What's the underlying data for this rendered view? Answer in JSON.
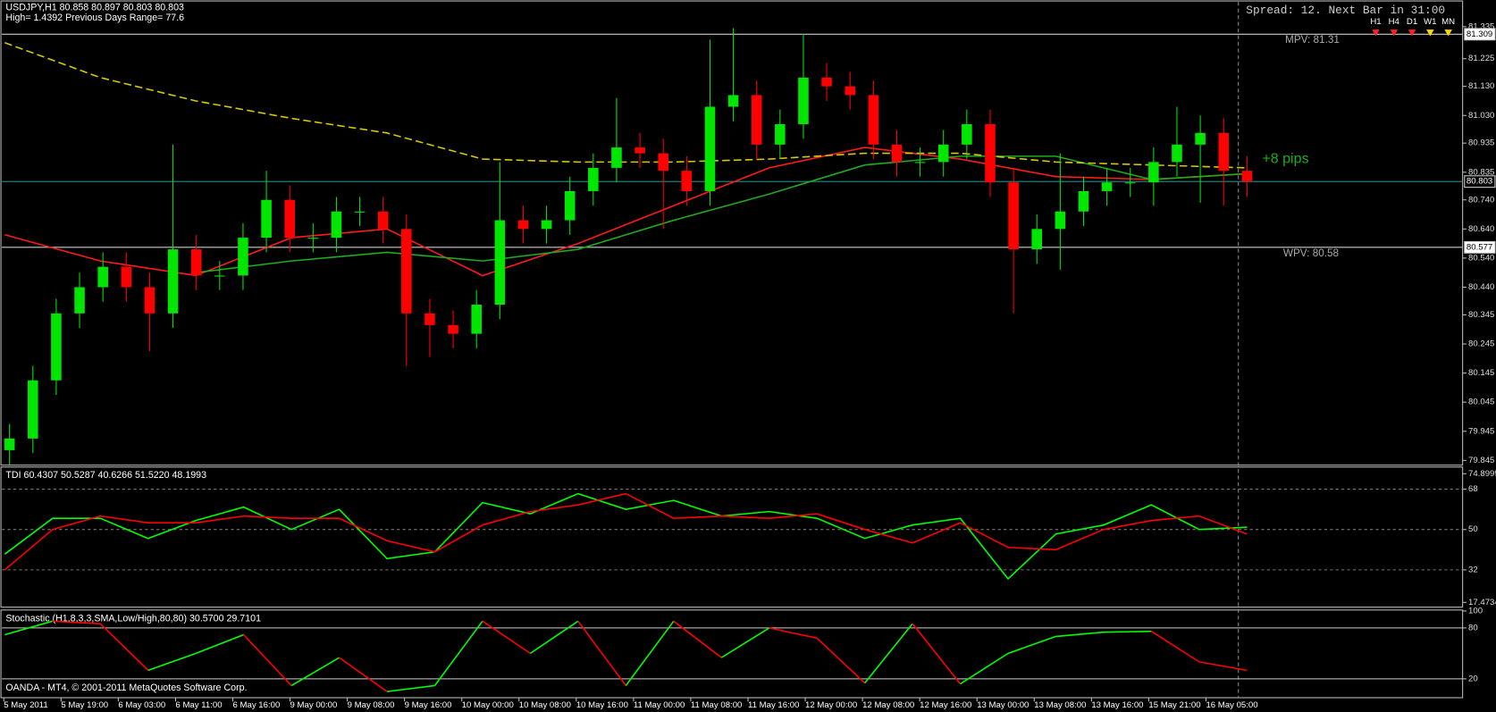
{
  "x_axis_labels": [
    "5 May 2011",
    "5 May 19:00",
    "6 May 03:00",
    "6 May 11:00",
    "6 May 16:00",
    "9 May 00:00",
    "9 May 08:00",
    "9 May 16:00",
    "10 May 00:00",
    "10 May 08:00",
    "10 May 16:00",
    "11 May 00:00",
    "11 May 08:00",
    "11 May 16:00",
    "12 May 00:00",
    "12 May 08:00",
    "12 May 16:00",
    "13 May 00:00",
    "13 May 08:00",
    "13 May 16:00",
    "15 May 21:00",
    "16 May 05:00"
  ],
  "chart_data": [
    {
      "type": "candlestick",
      "title": "USDJPY,H1  80.858 80.897 80.803 80.803",
      "subtitle": "High= 1.4392   Previous Days Range= 77.6",
      "spread": "Spread: 12. Next Bar in 31:00",
      "timeframes": [
        "H1",
        "H4",
        "D1",
        "W1",
        "MN"
      ],
      "annotations": [
        "MPV: 81.31",
        "WPV: 80.58",
        "+8 pips"
      ],
      "up_color": "#00e600",
      "down_color": "#ff0000",
      "open": [
        79.88,
        79.92,
        80.12,
        80.35,
        80.44,
        80.51,
        80.44,
        80.35,
        80.57,
        80.48,
        80.48,
        80.61,
        80.74,
        80.61,
        80.61,
        80.7,
        80.7,
        80.64,
        80.35,
        80.31,
        80.28,
        80.38,
        80.67,
        80.64,
        80.67,
        80.77,
        80.85,
        80.92,
        80.9,
        80.84,
        80.77,
        81.06,
        81.1,
        80.93,
        81.0,
        81.16,
        81.13,
        81.1,
        80.93,
        80.87,
        80.87,
        80.93,
        81.0,
        80.8,
        80.57,
        80.64,
        80.7,
        80.77,
        80.8,
        80.8,
        80.87,
        80.93,
        80.97,
        80.84
      ],
      "high": [
        79.97,
        80.17,
        80.4,
        80.49,
        80.56,
        80.56,
        80.49,
        80.93,
        80.62,
        80.53,
        80.66,
        80.84,
        80.79,
        80.66,
        80.75,
        80.75,
        80.75,
        80.69,
        80.4,
        80.36,
        80.43,
        80.87,
        80.72,
        80.72,
        80.82,
        80.9,
        81.09,
        80.97,
        80.95,
        80.89,
        81.29,
        81.33,
        81.15,
        81.05,
        81.31,
        81.21,
        81.18,
        81.15,
        80.98,
        80.92,
        80.98,
        81.05,
        81.05,
        80.85,
        80.69,
        80.9,
        80.82,
        80.85,
        80.85,
        80.92,
        81.06,
        81.03,
        81.02,
        80.89
      ],
      "low": [
        79.83,
        79.87,
        80.07,
        80.3,
        80.39,
        80.39,
        80.22,
        80.3,
        80.43,
        80.43,
        80.43,
        80.56,
        80.56,
        80.56,
        80.56,
        80.65,
        80.59,
        80.17,
        80.2,
        80.23,
        80.23,
        80.33,
        80.59,
        80.59,
        80.62,
        80.72,
        80.8,
        80.85,
        80.64,
        80.72,
        80.72,
        81.01,
        80.88,
        80.88,
        80.95,
        81.08,
        81.05,
        80.88,
        80.82,
        80.82,
        80.82,
        80.88,
        80.75,
        80.35,
        80.52,
        80.5,
        80.65,
        80.72,
        80.75,
        80.72,
        80.82,
        80.73,
        80.72,
        80.75
      ],
      "close": [
        79.92,
        80.12,
        80.35,
        80.44,
        80.51,
        80.44,
        80.35,
        80.57,
        80.48,
        80.48,
        80.61,
        80.74,
        80.61,
        80.61,
        80.7,
        80.7,
        80.64,
        80.35,
        80.31,
        80.28,
        80.38,
        80.67,
        80.64,
        80.67,
        80.77,
        80.85,
        80.92,
        80.9,
        80.84,
        80.77,
        81.06,
        81.1,
        80.93,
        81.0,
        81.16,
        81.13,
        81.1,
        80.93,
        80.87,
        80.87,
        80.93,
        81.0,
        80.8,
        80.57,
        80.64,
        80.7,
        80.77,
        80.8,
        80.8,
        80.87,
        80.93,
        80.97,
        80.84,
        80.803
      ],
      "series": [
        {
          "color": "#ff1a1a",
          "values": [
            80.62,
            80.53,
            80.48,
            80.61,
            80.64,
            80.48,
            80.59,
            80.72,
            80.85,
            80.92,
            80.88,
            80.82,
            80.81,
            80.83
          ]
        },
        {
          "color": "#1faa1f",
          "values": [
            null,
            null,
            80.49,
            80.53,
            80.56,
            80.53,
            80.57,
            80.67,
            80.76,
            80.86,
            80.89,
            80.89,
            80.81,
            80.83
          ]
        },
        {
          "color": "#d8c800",
          "dashed": true,
          "values": [
            81.28,
            81.16,
            81.08,
            81.02,
            80.97,
            80.88,
            80.87,
            80.87,
            80.88,
            80.9,
            80.9,
            80.87,
            80.86,
            80.85
          ]
        }
      ],
      "price_lines": [
        81.309,
        80.803,
        80.577
      ],
      "ylim": [
        79.845,
        81.335
      ],
      "yticks": [
        {
          "value": 81.335,
          "label": "81.335"
        },
        81.225,
        {
          "value": 81.13,
          "label": "81.130"
        },
        {
          "value": 81.03,
          "label": "81.030"
        },
        80.935,
        80.835,
        {
          "value": 80.74,
          "label": "80.740"
        },
        {
          "value": 80.64,
          "label": "80.640"
        },
        {
          "value": 80.54,
          "label": "80.540"
        },
        {
          "value": 80.44,
          "label": "80.440"
        },
        80.345,
        80.245,
        80.145,
        80.045,
        79.945,
        79.845
      ]
    },
    {
      "type": "line",
      "title": "TDI 60.4307 50.5287 40.6266 51.5220 48.1993",
      "series": [
        {
          "color": "#00ff00",
          "values": [
            39,
            55,
            55,
            46,
            54,
            60,
            50,
            59,
            37,
            40,
            62,
            57,
            66,
            59,
            63,
            56,
            58,
            55,
            46,
            52,
            55,
            28,
            48,
            52,
            61,
            50,
            51
          ]
        },
        {
          "color": "#ff0000",
          "values": [
            32,
            50,
            56,
            53,
            53,
            56,
            55,
            55,
            45,
            40,
            52,
            58,
            61,
            66,
            55,
            56,
            55,
            57,
            50,
            44,
            53,
            42,
            41,
            50,
            54,
            56,
            48
          ]
        }
      ],
      "ylim": [
        17.4734,
        74.8999
      ],
      "yticks": [
        74.8999,
        68,
        50,
        32,
        17.4734
      ],
      "levels": [
        68,
        50,
        32
      ]
    },
    {
      "type": "oscillator",
      "title": "Stochastic (H1,8,3,3,SMA,Low/High,80,80) 30.5700 29.7101",
      "footer": "OANDA - MT4, © 2001-2011 MetaQuotes Software Corp.",
      "up_color": "#00ff00",
      "down_color": "#ff0000",
      "values": [
        72,
        88,
        85,
        30,
        50,
        72,
        12,
        45,
        5,
        12,
        88,
        50,
        88,
        12,
        88,
        45,
        80,
        68,
        15,
        85,
        14,
        50,
        70,
        75,
        76,
        40,
        30
      ],
      "ylim": [
        0,
        100
      ],
      "yticks": [
        100,
        80,
        20
      ],
      "levels": [
        80,
        20
      ]
    }
  ]
}
